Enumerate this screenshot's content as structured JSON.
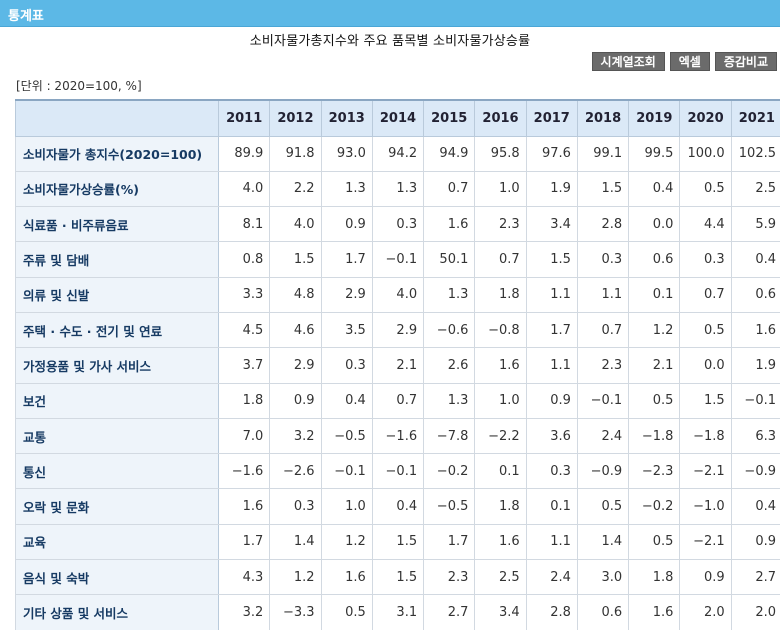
{
  "header": {
    "title": "통계표"
  },
  "page_title": "소비자물가총지수와 주요 품목별 소비자물가상승률",
  "buttons": {
    "timeseries": "시계열조회",
    "excel": "엑셀",
    "change": "증감비교"
  },
  "unit": "[단위 : 2020=100, %]",
  "years": [
    "2011",
    "2012",
    "2013",
    "2014",
    "2015",
    "2016",
    "2017",
    "2018",
    "2019",
    "2020",
    "2021"
  ],
  "rows": [
    {
      "label": "소비자물가 총지수(2020=100)",
      "values": [
        "89.9",
        "91.8",
        "93.0",
        "94.2",
        "94.9",
        "95.8",
        "97.6",
        "99.1",
        "99.5",
        "100.0",
        "102.5"
      ]
    },
    {
      "label": "소비자물가상승률(%)",
      "values": [
        "4.0",
        "2.2",
        "1.3",
        "1.3",
        "0.7",
        "1.0",
        "1.9",
        "1.5",
        "0.4",
        "0.5",
        "2.5"
      ]
    },
    {
      "label": "식료품 · 비주류음료",
      "values": [
        "8.1",
        "4.0",
        "0.9",
        "0.3",
        "1.6",
        "2.3",
        "3.4",
        "2.8",
        "0.0",
        "4.4",
        "5.9"
      ]
    },
    {
      "label": "주류 및 담배",
      "values": [
        "0.8",
        "1.5",
        "1.7",
        "−0.1",
        "50.1",
        "0.7",
        "1.5",
        "0.3",
        "0.6",
        "0.3",
        "0.4"
      ]
    },
    {
      "label": "의류 및 신발",
      "values": [
        "3.3",
        "4.8",
        "2.9",
        "4.0",
        "1.3",
        "1.8",
        "1.1",
        "1.1",
        "0.1",
        "0.7",
        "0.6"
      ]
    },
    {
      "label": "주택 · 수도 · 전기 및 연료",
      "values": [
        "4.5",
        "4.6",
        "3.5",
        "2.9",
        "−0.6",
        "−0.8",
        "1.7",
        "0.7",
        "1.2",
        "0.5",
        "1.6"
      ]
    },
    {
      "label": "가정용품 및 가사 서비스",
      "values": [
        "3.7",
        "2.9",
        "0.3",
        "2.1",
        "2.6",
        "1.6",
        "1.1",
        "2.3",
        "2.1",
        "0.0",
        "1.9"
      ]
    },
    {
      "label": "보건",
      "values": [
        "1.8",
        "0.9",
        "0.4",
        "0.7",
        "1.3",
        "1.0",
        "0.9",
        "−0.1",
        "0.5",
        "1.5",
        "−0.1"
      ]
    },
    {
      "label": "교통",
      "values": [
        "7.0",
        "3.2",
        "−0.5",
        "−1.6",
        "−7.8",
        "−2.2",
        "3.6",
        "2.4",
        "−1.8",
        "−1.8",
        "6.3"
      ]
    },
    {
      "label": "통신",
      "values": [
        "−1.6",
        "−2.6",
        "−0.1",
        "−0.1",
        "−0.2",
        "0.1",
        "0.3",
        "−0.9",
        "−2.3",
        "−2.1",
        "−0.9"
      ]
    },
    {
      "label": "오락 및 문화",
      "values": [
        "1.6",
        "0.3",
        "1.0",
        "0.4",
        "−0.5",
        "1.8",
        "0.1",
        "0.5",
        "−0.2",
        "−1.0",
        "0.4"
      ]
    },
    {
      "label": "교육",
      "values": [
        "1.7",
        "1.4",
        "1.2",
        "1.5",
        "1.7",
        "1.6",
        "1.1",
        "1.4",
        "0.5",
        "−2.1",
        "0.9"
      ]
    },
    {
      "label": "음식 및 숙박",
      "values": [
        "4.3",
        "1.2",
        "1.6",
        "1.5",
        "2.3",
        "2.5",
        "2.4",
        "3.0",
        "1.8",
        "0.9",
        "2.7"
      ]
    },
    {
      "label": "기타 상품 및 서비스",
      "values": [
        "3.2",
        "−3.3",
        "0.5",
        "3.1",
        "2.7",
        "3.4",
        "2.8",
        "0.6",
        "1.6",
        "2.0",
        "2.0"
      ]
    }
  ]
}
